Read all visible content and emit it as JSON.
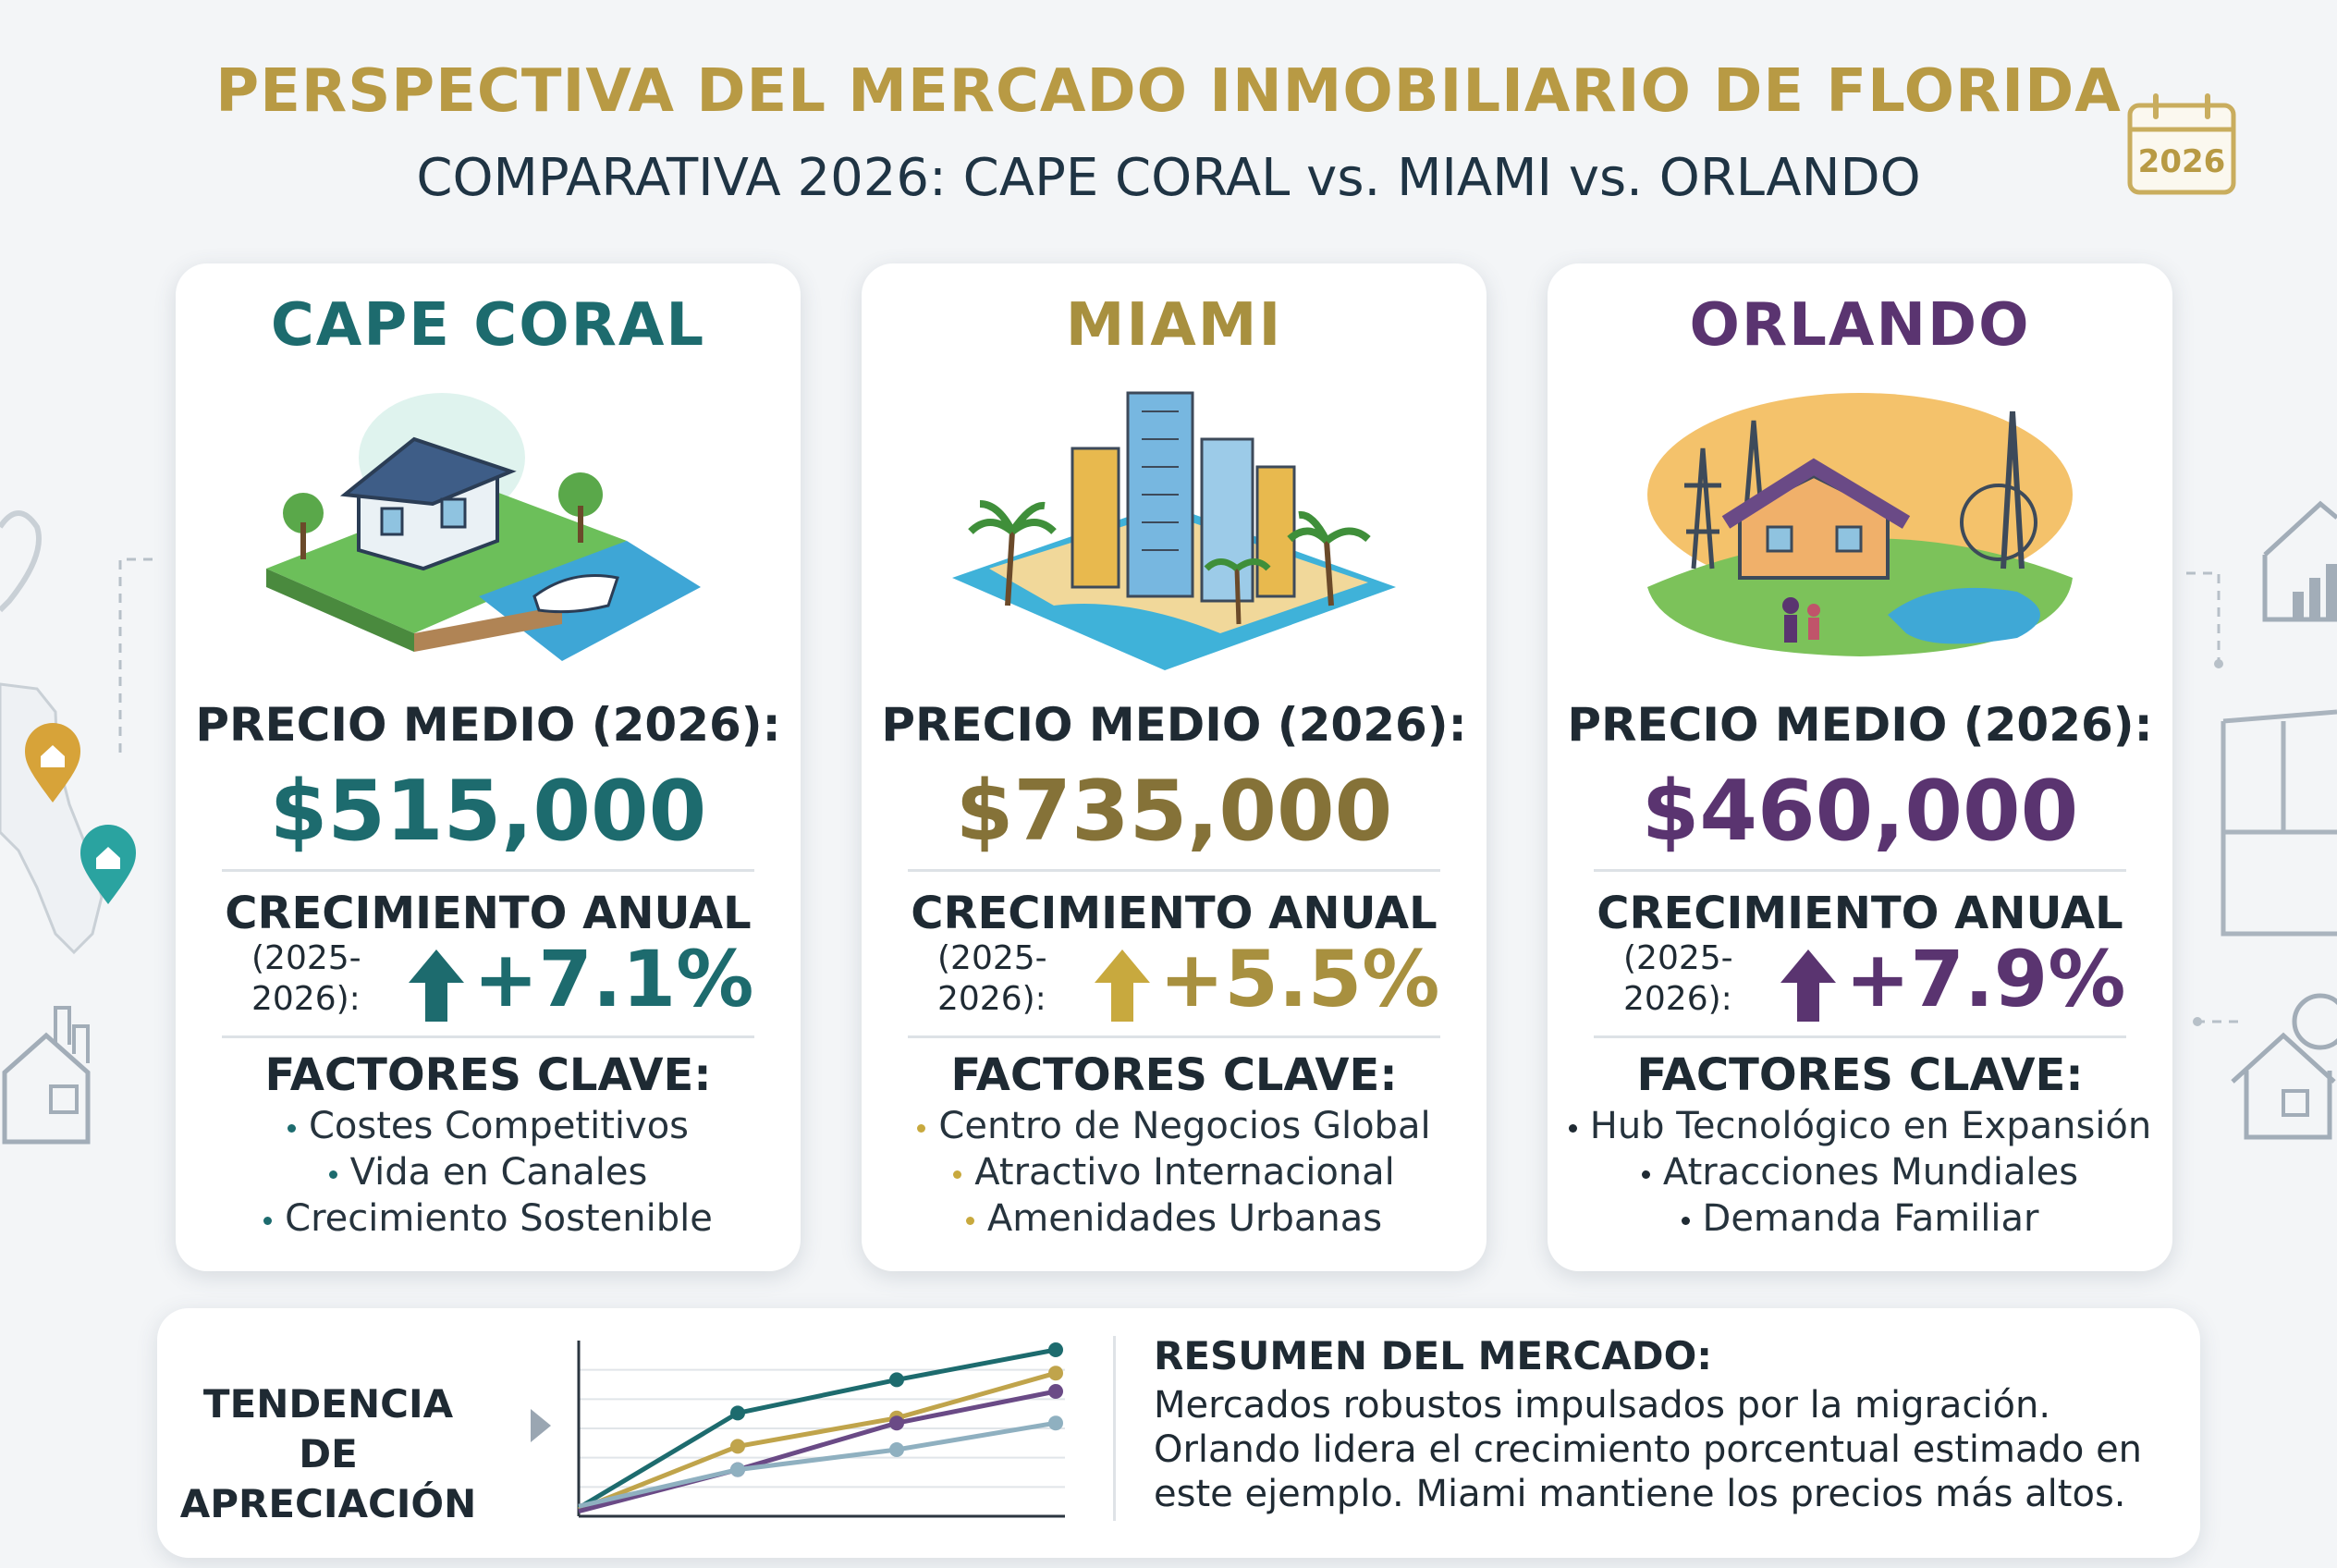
{
  "header": {
    "title": "PERSPECTIVA DEL MERCADO INMOBILIARIO DE FLORIDA",
    "subtitle": "COMPARATIVA 2026: CAPE CORAL vs. MIAMI vs. ORLANDO",
    "calendar_year": "2026",
    "calendar_icon": "calendar-icon"
  },
  "colors": {
    "gold": "#b89a44",
    "cape_coral": "#1d6b6e",
    "miami": "#a8903f",
    "orlando": "#5a3470",
    "background": "#f3f5f7"
  },
  "cards": [
    {
      "city": "CAPE CORAL",
      "illustration": "waterfront-house-illustration",
      "price_label": "PRECIO MEDIO (2026):",
      "price": "$515,000",
      "growth_label": "CRECIMIENTO ANUAL",
      "period": "(2025-\n2026):",
      "growth_icon": "arrow-up-icon",
      "growth": "+7.1%",
      "factors_label": "FACTORES CLAVE:",
      "factors": [
        "Costes Competitivos",
        "Vida en Canales",
        "Crecimiento Sostenible"
      ]
    },
    {
      "city": "MIAMI",
      "illustration": "city-skyline-beach-illustration",
      "price_label": "PRECIO MEDIO (2026):",
      "price": "$735,000",
      "growth_label": "CRECIMIENTO ANUAL",
      "period": "(2025-\n2026):",
      "growth_icon": "arrow-up-icon",
      "growth": "+5.5%",
      "factors_label": "FACTORES CLAVE:",
      "factors": [
        "Centro de Negocios Global",
        "Atractivo Internacional",
        "Amenidades Urbanas"
      ]
    },
    {
      "city": "ORLANDO",
      "illustration": "family-home-attractions-illustration",
      "price_label": "PRECIO MEDIO (2026):",
      "price": "$460,000",
      "growth_label": "CRECIMIENTO ANUAL",
      "period": "(2025-\n2026):",
      "growth_icon": "arrow-up-icon",
      "growth": "+7.9%",
      "factors_label": "FACTORES CLAVE:",
      "factors": [
        "Hub Tecnológico en Expansión",
        "Atracciones Mundiales",
        "Demanda Familiar"
      ]
    }
  ],
  "trend": {
    "label_line1": "TENDENCIA DE",
    "label_line2": "APRECIACIÓN"
  },
  "chart_data": {
    "type": "line",
    "title": "",
    "xlabel": "",
    "ylabel": "",
    "x": [
      0,
      1,
      2,
      3
    ],
    "ylim": [
      0,
      10
    ],
    "grid": true,
    "series": [
      {
        "values": [
          0.5,
          6.2,
          8.2,
          10.0
        ],
        "color": "#1d6b6e"
      },
      {
        "values": [
          0.4,
          4.2,
          5.9,
          8.6
        ],
        "color": "#c0a44b"
      },
      {
        "values": [
          0.3,
          2.8,
          5.6,
          7.5
        ],
        "color": "#6a4a86"
      },
      {
        "values": [
          0.6,
          2.8,
          4.0,
          5.6
        ],
        "color": "#8fb0c0"
      }
    ]
  },
  "summary": {
    "title": "RESUMEN DEL MERCADO:",
    "lines": [
      "Mercados robustos impulsados por la migración.",
      "Orlando lidera el crecimiento porcentual estimado en",
      "este ejemplo. Miami mantiene los precios más altos."
    ]
  }
}
